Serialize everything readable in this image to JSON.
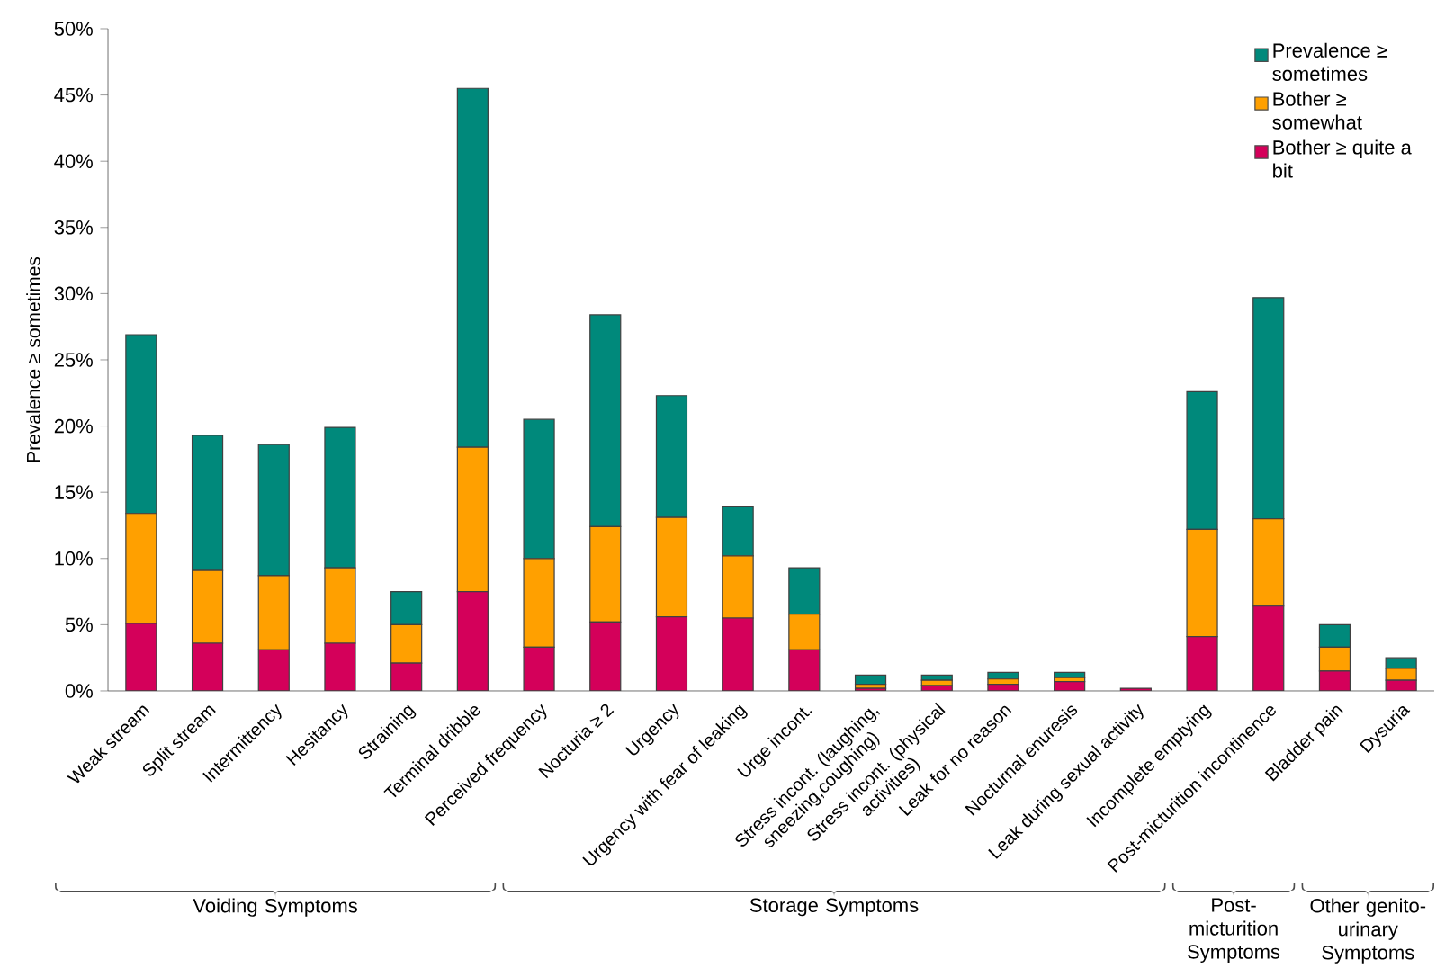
{
  "chart_data": {
    "type": "bar",
    "stacked": true,
    "ylabel": "Prevalence ≥ sometimes",
    "categories": [
      "Weak stream",
      "Split stream",
      "Intermittency",
      "Hesitancy",
      "Straining",
      "Terminal dribble",
      "Perceived frequency",
      "Nocturia ≥ 2",
      "Urgency",
      "Urgency with fear of leaking",
      "Urge incont.",
      "Stress incont. (laughing, sneezing,coughing)",
      "Stress incont. (physical activities)",
      "Leak for no reason",
      "Nocturnal enuresis",
      "Leak during sexual activity",
      "Incomplete emptying",
      "Post-micturition incontinence",
      "Bladder pain",
      "Dysuria"
    ],
    "series": [
      {
        "name": "Bother ≥ quite a bit",
        "color": "#d4005a",
        "values": [
          5.1,
          3.6,
          3.1,
          3.6,
          2.1,
          7.5,
          3.3,
          5.2,
          5.6,
          5.5,
          3.1,
          0.2,
          0.4,
          0.5,
          0.7,
          0.2,
          4.1,
          6.4,
          1.5,
          0.8
        ]
      },
      {
        "name": "Bother ≥ somewhat",
        "color": "#ffa000",
        "values": [
          8.3,
          5.5,
          5.6,
          5.7,
          2.9,
          10.9,
          6.7,
          7.2,
          7.5,
          4.7,
          2.7,
          0.3,
          0.4,
          0.4,
          0.3,
          0,
          8.1,
          6.6,
          1.8,
          0.9
        ]
      },
      {
        "name": "Prevalence ≥ sometimes",
        "color": "#00897b",
        "values": [
          13.5,
          10.2,
          9.9,
          10.6,
          2.5,
          27.1,
          10.5,
          16.0,
          9.2,
          3.7,
          3.5,
          0.7,
          0.4,
          0.5,
          0.4,
          0,
          10.4,
          16.7,
          1.7,
          0.8
        ]
      }
    ],
    "ylim": [
      0,
      50
    ],
    "yticks": [
      {
        "value": 0,
        "label": "0%"
      },
      {
        "value": 5,
        "label": "5%"
      },
      {
        "value": 10,
        "label": "10%"
      },
      {
        "value": 15,
        "label": "15%"
      },
      {
        "value": 20,
        "label": "20%"
      },
      {
        "value": 25,
        "label": "25%"
      },
      {
        "value": 30,
        "label": "30%"
      },
      {
        "value": 35,
        "label": "35%"
      },
      {
        "value": 40,
        "label": "40%"
      },
      {
        "value": 45,
        "label": "45%"
      },
      {
        "value": 50,
        "label": "50%"
      }
    ],
    "legend": "top right",
    "annotations": [
      "Voiding Symptoms",
      "Storage Symptoms",
      "Post-micturition Symptoms",
      "Other genito-urinary Symptoms"
    ]
  }
}
